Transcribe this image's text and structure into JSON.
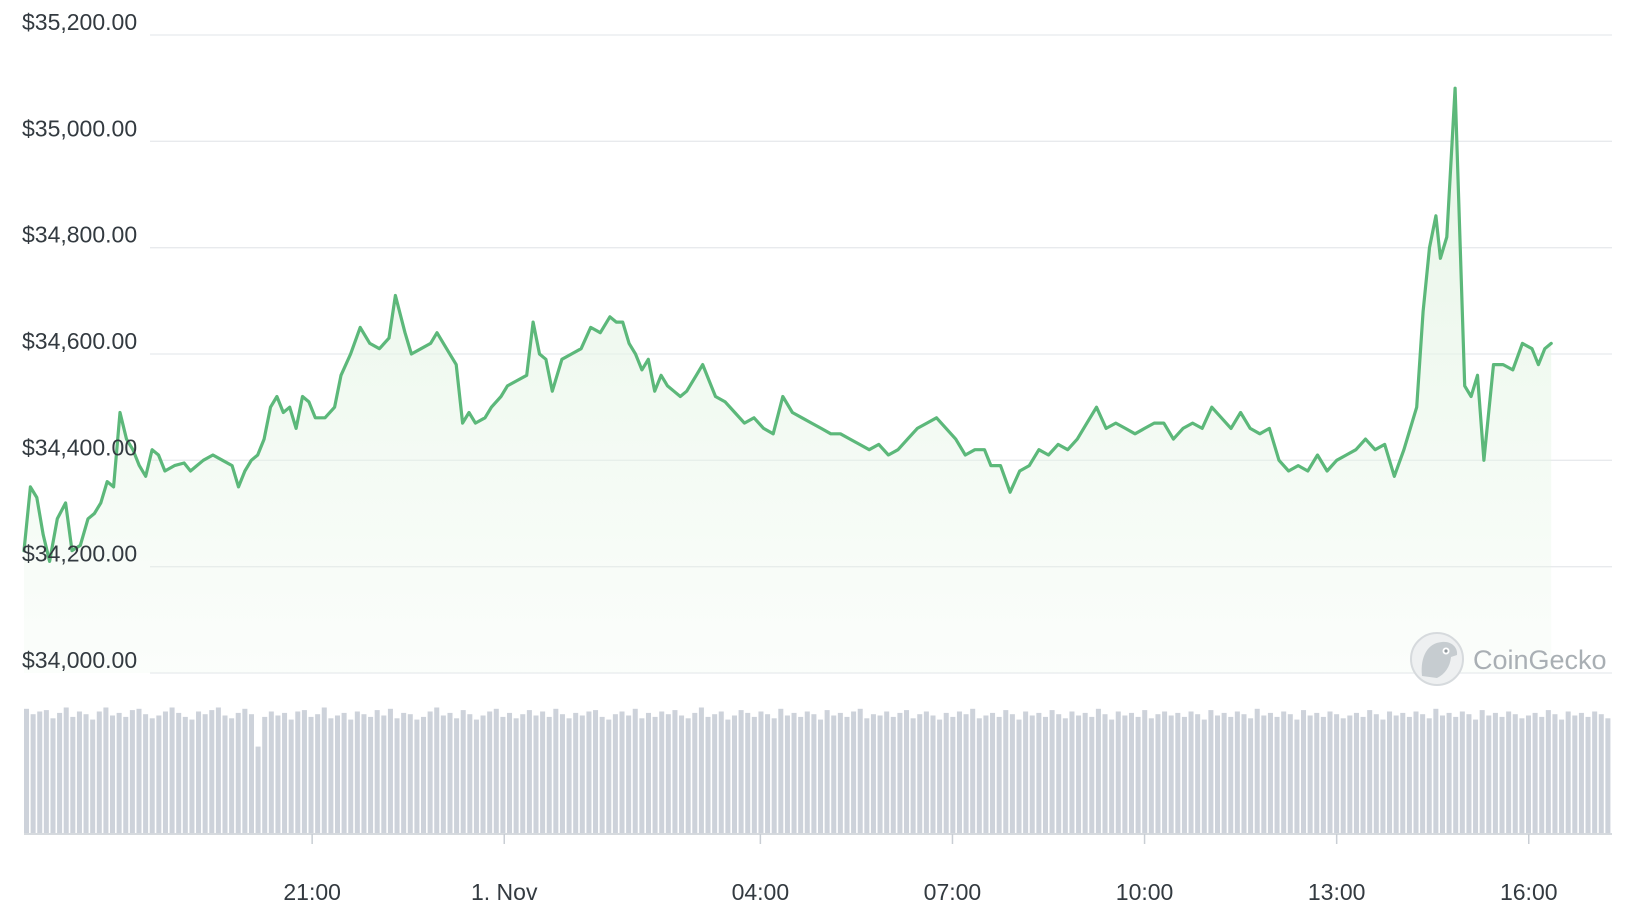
{
  "watermark": {
    "text": "CoinGecko",
    "icon": "coingecko-gecko-icon"
  },
  "colors": {
    "line": "#5cb87a",
    "fill_top": "#e6f5e6",
    "grid": "#e8eaed",
    "volume": "#cdd2da",
    "axis_text": "#333a40"
  },
  "chart_data": {
    "type": "line",
    "title": "",
    "ylim": [
      34000,
      35200
    ],
    "y_ticks": [
      {
        "value": 35200,
        "label": "$35,200.00"
      },
      {
        "value": 35000,
        "label": "$35,000.00"
      },
      {
        "value": 34800,
        "label": "$34,800.00"
      },
      {
        "value": 34600,
        "label": "$34,600.00"
      },
      {
        "value": 34400,
        "label": "$34,400.00"
      },
      {
        "value": 34200,
        "label": "$34,200.00"
      },
      {
        "value": 34000,
        "label": "$34,000.00"
      }
    ],
    "x_ticks": [
      {
        "hour": 3.5,
        "label": "21:00"
      },
      {
        "hour": 6.5,
        "label": "1. Nov"
      },
      {
        "hour": 10.5,
        "label": "04:00"
      },
      {
        "hour": 13.5,
        "label": "07:00"
      },
      {
        "hour": 16.5,
        "label": "10:00"
      },
      {
        "hour": 19.5,
        "label": "13:00"
      },
      {
        "hour": 22.5,
        "label": "16:00"
      }
    ],
    "x_range_hours": [
      -1.0,
      23.8
    ],
    "series": [
      {
        "type": "line",
        "values": [
          [
            -1.0,
            34230
          ],
          [
            -0.9,
            34350
          ],
          [
            -0.8,
            34330
          ],
          [
            -0.7,
            34260
          ],
          [
            -0.6,
            34210
          ],
          [
            -0.48,
            34290
          ],
          [
            -0.35,
            34320
          ],
          [
            -0.25,
            34230
          ],
          [
            -0.12,
            34240
          ],
          [
            0.0,
            34290
          ],
          [
            0.1,
            34300
          ],
          [
            0.2,
            34320
          ],
          [
            0.3,
            34360
          ],
          [
            0.4,
            34350
          ],
          [
            0.5,
            34490
          ],
          [
            0.6,
            34440
          ],
          [
            0.7,
            34420
          ],
          [
            0.8,
            34390
          ],
          [
            0.9,
            34370
          ],
          [
            1.0,
            34420
          ],
          [
            1.1,
            34410
          ],
          [
            1.2,
            34380
          ],
          [
            1.35,
            34390
          ],
          [
            1.5,
            34395
          ],
          [
            1.6,
            34380
          ],
          [
            1.7,
            34390
          ],
          [
            1.8,
            34400
          ],
          [
            1.95,
            34410
          ],
          [
            2.1,
            34400
          ],
          [
            2.25,
            34390
          ],
          [
            2.35,
            34350
          ],
          [
            2.45,
            34380
          ],
          [
            2.55,
            34400
          ],
          [
            2.65,
            34410
          ],
          [
            2.75,
            34440
          ],
          [
            2.85,
            34500
          ],
          [
            2.95,
            34520
          ],
          [
            3.05,
            34490
          ],
          [
            3.15,
            34500
          ],
          [
            3.25,
            34460
          ],
          [
            3.35,
            34520
          ],
          [
            3.45,
            34510
          ],
          [
            3.55,
            34480
          ],
          [
            3.7,
            34480
          ],
          [
            3.85,
            34500
          ],
          [
            3.95,
            34560
          ],
          [
            4.1,
            34600
          ],
          [
            4.25,
            34650
          ],
          [
            4.4,
            34620
          ],
          [
            4.55,
            34610
          ],
          [
            4.7,
            34630
          ],
          [
            4.8,
            34710
          ],
          [
            4.95,
            34640
          ],
          [
            5.05,
            34600
          ],
          [
            5.2,
            34610
          ],
          [
            5.35,
            34620
          ],
          [
            5.45,
            34640
          ],
          [
            5.6,
            34610
          ],
          [
            5.75,
            34580
          ],
          [
            5.85,
            34470
          ],
          [
            5.95,
            34490
          ],
          [
            6.05,
            34470
          ],
          [
            6.2,
            34480
          ],
          [
            6.3,
            34500
          ],
          [
            6.45,
            34520
          ],
          [
            6.55,
            34540
          ],
          [
            6.7,
            34550
          ],
          [
            6.85,
            34560
          ],
          [
            6.95,
            34660
          ],
          [
            7.05,
            34600
          ],
          [
            7.15,
            34590
          ],
          [
            7.25,
            34530
          ],
          [
            7.4,
            34590
          ],
          [
            7.55,
            34600
          ],
          [
            7.7,
            34610
          ],
          [
            7.85,
            34650
          ],
          [
            8.0,
            34640
          ],
          [
            8.15,
            34670
          ],
          [
            8.25,
            34660
          ],
          [
            8.35,
            34660
          ],
          [
            8.45,
            34620
          ],
          [
            8.55,
            34600
          ],
          [
            8.65,
            34570
          ],
          [
            8.75,
            34590
          ],
          [
            8.85,
            34530
          ],
          [
            8.95,
            34560
          ],
          [
            9.05,
            34540
          ],
          [
            9.15,
            34530
          ],
          [
            9.25,
            34520
          ],
          [
            9.35,
            34530
          ],
          [
            9.5,
            34560
          ],
          [
            9.6,
            34580
          ],
          [
            9.7,
            34550
          ],
          [
            9.8,
            34520
          ],
          [
            9.95,
            34510
          ],
          [
            10.1,
            34490
          ],
          [
            10.25,
            34470
          ],
          [
            10.4,
            34480
          ],
          [
            10.55,
            34460
          ],
          [
            10.7,
            34450
          ],
          [
            10.85,
            34520
          ],
          [
            11.0,
            34490
          ],
          [
            11.15,
            34480
          ],
          [
            11.3,
            34470
          ],
          [
            11.45,
            34460
          ],
          [
            11.6,
            34450
          ],
          [
            11.75,
            34450
          ],
          [
            11.9,
            34440
          ],
          [
            12.05,
            34430
          ],
          [
            12.2,
            34420
          ],
          [
            12.35,
            34430
          ],
          [
            12.5,
            34410
          ],
          [
            12.65,
            34420
          ],
          [
            12.8,
            34440
          ],
          [
            12.95,
            34460
          ],
          [
            13.1,
            34470
          ],
          [
            13.25,
            34480
          ],
          [
            13.4,
            34460
          ],
          [
            13.55,
            34440
          ],
          [
            13.7,
            34410
          ],
          [
            13.85,
            34420
          ],
          [
            14.0,
            34420
          ],
          [
            14.1,
            34390
          ],
          [
            14.25,
            34390
          ],
          [
            14.4,
            34340
          ],
          [
            14.55,
            34380
          ],
          [
            14.7,
            34390
          ],
          [
            14.85,
            34420
          ],
          [
            15.0,
            34410
          ],
          [
            15.15,
            34430
          ],
          [
            15.3,
            34420
          ],
          [
            15.45,
            34440
          ],
          [
            15.6,
            34470
          ],
          [
            15.75,
            34500
          ],
          [
            15.9,
            34460
          ],
          [
            16.05,
            34470
          ],
          [
            16.2,
            34460
          ],
          [
            16.35,
            34450
          ],
          [
            16.5,
            34460
          ],
          [
            16.65,
            34470
          ],
          [
            16.8,
            34470
          ],
          [
            16.95,
            34440
          ],
          [
            17.1,
            34460
          ],
          [
            17.25,
            34470
          ],
          [
            17.4,
            34460
          ],
          [
            17.55,
            34500
          ],
          [
            17.7,
            34480
          ],
          [
            17.85,
            34460
          ],
          [
            18.0,
            34490
          ],
          [
            18.15,
            34460
          ],
          [
            18.3,
            34450
          ],
          [
            18.45,
            34460
          ],
          [
            18.6,
            34400
          ],
          [
            18.75,
            34380
          ],
          [
            18.9,
            34390
          ],
          [
            19.05,
            34380
          ],
          [
            19.2,
            34410
          ],
          [
            19.35,
            34380
          ],
          [
            19.5,
            34400
          ],
          [
            19.65,
            34410
          ],
          [
            19.8,
            34420
          ],
          [
            19.95,
            34440
          ],
          [
            20.1,
            34420
          ],
          [
            20.25,
            34430
          ],
          [
            20.4,
            34370
          ],
          [
            20.55,
            34420
          ],
          [
            20.65,
            34460
          ],
          [
            20.75,
            34500
          ],
          [
            20.85,
            34680
          ],
          [
            20.95,
            34800
          ],
          [
            21.05,
            34860
          ],
          [
            21.12,
            34780
          ],
          [
            21.22,
            34820
          ],
          [
            21.35,
            35100
          ],
          [
            21.5,
            34540
          ],
          [
            21.6,
            34520
          ],
          [
            21.7,
            34560
          ],
          [
            21.8,
            34400
          ],
          [
            21.95,
            34580
          ],
          [
            22.1,
            34580
          ],
          [
            22.25,
            34570
          ],
          [
            22.4,
            34620
          ],
          [
            22.55,
            34610
          ],
          [
            22.65,
            34580
          ],
          [
            22.75,
            34610
          ],
          [
            22.85,
            34620
          ]
        ]
      }
    ],
    "volume": [
      0.92,
      0.88,
      0.9,
      0.91,
      0.85,
      0.89,
      0.93,
      0.86,
      0.9,
      0.88,
      0.84,
      0.9,
      0.93,
      0.87,
      0.89,
      0.86,
      0.91,
      0.92,
      0.88,
      0.85,
      0.87,
      0.9,
      0.93,
      0.89,
      0.86,
      0.84,
      0.9,
      0.88,
      0.91,
      0.93,
      0.87,
      0.85,
      0.89,
      0.92,
      0.88,
      0.64,
      0.86,
      0.9,
      0.87,
      0.89,
      0.84,
      0.9,
      0.91,
      0.86,
      0.88,
      0.93,
      0.85,
      0.87,
      0.89,
      0.84,
      0.9,
      0.88,
      0.86,
      0.91,
      0.87,
      0.92,
      0.85,
      0.89,
      0.88,
      0.84,
      0.86,
      0.9,
      0.93,
      0.87,
      0.89,
      0.85,
      0.91,
      0.88,
      0.84,
      0.87,
      0.9,
      0.92,
      0.86,
      0.89,
      0.85,
      0.88,
      0.91,
      0.87,
      0.9,
      0.86,
      0.92,
      0.88,
      0.85,
      0.89,
      0.87,
      0.9,
      0.91,
      0.86,
      0.84,
      0.88,
      0.9,
      0.87,
      0.92,
      0.85,
      0.89,
      0.86,
      0.9,
      0.88,
      0.91,
      0.87,
      0.85,
      0.89,
      0.93,
      0.86,
      0.88,
      0.9,
      0.84,
      0.87,
      0.91,
      0.89,
      0.86,
      0.9,
      0.88,
      0.85,
      0.92,
      0.87,
      0.89,
      0.86,
      0.9,
      0.88,
      0.84,
      0.91,
      0.87,
      0.89,
      0.86,
      0.9,
      0.92,
      0.85,
      0.88,
      0.87,
      0.9,
      0.86,
      0.89,
      0.91,
      0.85,
      0.88,
      0.9,
      0.87,
      0.84,
      0.89,
      0.86,
      0.9,
      0.88,
      0.92,
      0.85,
      0.87,
      0.89,
      0.86,
      0.91,
      0.88,
      0.84,
      0.9,
      0.87,
      0.89,
      0.86,
      0.91,
      0.88,
      0.85,
      0.9,
      0.87,
      0.89,
      0.86,
      0.92,
      0.88,
      0.84,
      0.9,
      0.87,
      0.89,
      0.86,
      0.91,
      0.85,
      0.88,
      0.9,
      0.87,
      0.89,
      0.86,
      0.9,
      0.88,
      0.84,
      0.91,
      0.87,
      0.89,
      0.86,
      0.9,
      0.88,
      0.85,
      0.92,
      0.87,
      0.89,
      0.86,
      0.9,
      0.88,
      0.84,
      0.91,
      0.87,
      0.89,
      0.86,
      0.9,
      0.88,
      0.85,
      0.87,
      0.89,
      0.86,
      0.91,
      0.88,
      0.84,
      0.9,
      0.87,
      0.89,
      0.86,
      0.9,
      0.88,
      0.85,
      0.92,
      0.87,
      0.89,
      0.86,
      0.9,
      0.88,
      0.84,
      0.91,
      0.87,
      0.89,
      0.86,
      0.9,
      0.88,
      0.85,
      0.87,
      0.89,
      0.86,
      0.91,
      0.88,
      0.84,
      0.9,
      0.87,
      0.89,
      0.86,
      0.9,
      0.88,
      0.85
    ]
  }
}
